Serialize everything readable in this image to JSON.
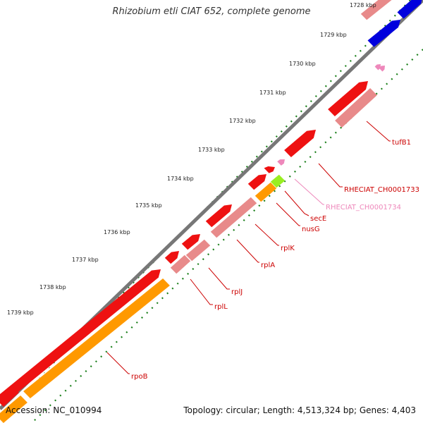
{
  "title": "Rhizobium etli CIAT 652, complete genome",
  "accession_text": "Accession: NC_010994",
  "summary_text": "Topology: circular; Length: 4,513,324 bp; Genes: 4,403",
  "colors": {
    "backbone": "#777777",
    "tick": "#1a7f1a",
    "red": "#ee1111",
    "pink": "#e88a8a",
    "orange": "#ff9900",
    "blue": "#0000dd",
    "lime": "#99ee22",
    "magenta": "#ee88bb",
    "label_red": "#cc0000",
    "label_pink": "#ee88bb"
  },
  "ticks": [
    {
      "label": "1728 kbp"
    },
    {
      "label": "1729 kbp"
    },
    {
      "label": "1730 kbp"
    },
    {
      "label": "1731 kbp"
    },
    {
      "label": "1732 kbp"
    },
    {
      "label": "1733 kbp"
    },
    {
      "label": "1734 kbp"
    },
    {
      "label": "1735 kbp"
    },
    {
      "label": "1736 kbp"
    },
    {
      "label": "1737 kbp"
    },
    {
      "label": "1738 kbp"
    },
    {
      "label": "1739 kbp"
    }
  ],
  "gene_labels": [
    {
      "text": "tufB1",
      "color": "red"
    },
    {
      "text": "RHECIAT_CH0001733",
      "color": "red"
    },
    {
      "text": "RHECIAT_CH0001734",
      "color": "pink"
    },
    {
      "text": "secE",
      "color": "red"
    },
    {
      "text": "nusG",
      "color": "red"
    },
    {
      "text": "rplK",
      "color": "red"
    },
    {
      "text": "rplA",
      "color": "red"
    },
    {
      "text": "rplJ",
      "color": "red"
    },
    {
      "text": "rplL",
      "color": "red"
    },
    {
      "text": "rpoB",
      "color": "red"
    }
  ]
}
